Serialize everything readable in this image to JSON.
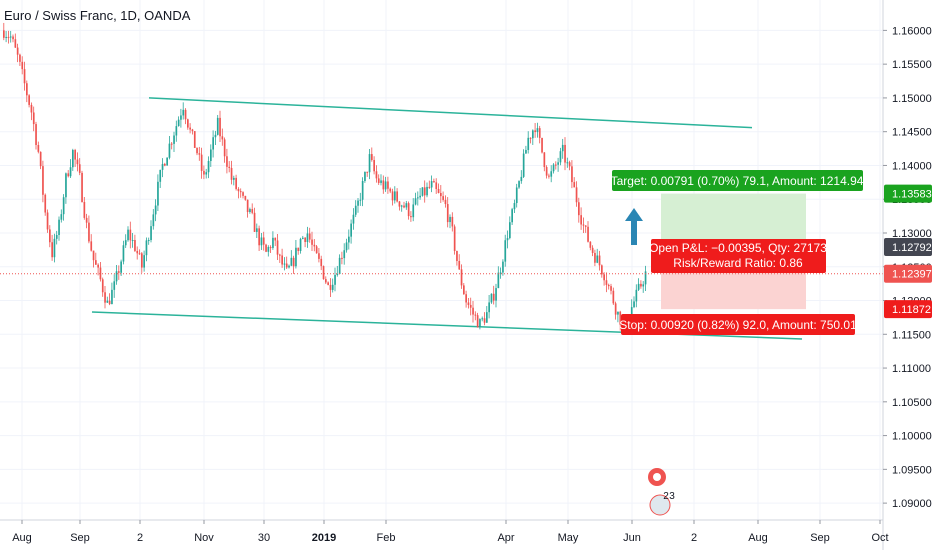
{
  "symbol_title": "Euro / Swiss Franc, 1D, OANDA",
  "colors": {
    "up": "#26a69a",
    "down": "#ef5350",
    "channel": "#2bb39a",
    "grid": "#f0f3fa",
    "price_line": "#ef5350",
    "target_zone": "#d6efd3",
    "stop_zone": "#fbd3d2",
    "target_badge": "#1aa31f",
    "stop_badge": "#ef1c1c",
    "arrow": "#2a86b4"
  },
  "chart_data": {
    "type": "candlestick",
    "y_range": [
      1.0875,
      1.1645
    ],
    "y_ticks": [
      "1.16000",
      "1.15500",
      "1.15000",
      "1.14500",
      "1.14000",
      "1.13500",
      "1.13000",
      "1.12500",
      "1.12000",
      "1.11500",
      "1.11000",
      "1.10500",
      "1.10000",
      "1.09500",
      "1.09000"
    ],
    "x_ticks": [
      "Aug",
      "Sep",
      "2",
      "Nov",
      "30",
      "2019",
      "Feb",
      "Apr",
      "May",
      "Jun",
      "2",
      "Aug",
      "Sep",
      "Oct"
    ],
    "price_flags": [
      {
        "label": "1.13583",
        "value": 1.13583,
        "color": "#1aa31f"
      },
      {
        "label": "1.12792",
        "value": 1.12792,
        "color": "#434651"
      },
      {
        "label": "1.12397",
        "value": 1.12397,
        "color": "#ef5350"
      },
      {
        "label": "1.11872",
        "value": 1.11872,
        "color": "#ef1c1c"
      }
    ],
    "current_price": 1.12397,
    "channel_upper": [
      {
        "date": "Sep 2018",
        "price": 1.15
      },
      {
        "date": "Jul 2019",
        "price": 1.1456
      }
    ],
    "channel_lower": [
      {
        "date": "Aug 2018",
        "price": 1.1183
      },
      {
        "date": "Aug 2019",
        "price": 1.1143
      }
    ],
    "position": {
      "entry": 1.12792,
      "target": 1.13583,
      "stop": 1.11872,
      "target_label": "Target: 0.00791 (0.70%) 79.1, Amount: 1214.94",
      "pnl_label": "Open P&L: −0.00395, Qty: 27173",
      "ratio_label": "Risk/Reward Ratio: 0.86",
      "stop_label": "Stop: 0.00920 (0.82%) 92.0, Amount: 750.01"
    },
    "close_path": [
      [
        0,
        1.16
      ],
      [
        3,
        1.159
      ],
      [
        6,
        1.156
      ],
      [
        9,
        1.152
      ],
      [
        12,
        1.148
      ],
      [
        15,
        1.142
      ],
      [
        18,
        1.133
      ],
      [
        21,
        1.127
      ],
      [
        24,
        1.131
      ],
      [
        27,
        1.138
      ],
      [
        30,
        1.142
      ],
      [
        33,
        1.138
      ],
      [
        36,
        1.131
      ],
      [
        39,
        1.126
      ],
      [
        42,
        1.123
      ],
      [
        45,
        1.1195
      ],
      [
        48,
        1.122
      ],
      [
        51,
        1.126
      ],
      [
        54,
        1.13
      ],
      [
        57,
        1.128
      ],
      [
        60,
        1.125
      ],
      [
        63,
        1.13
      ],
      [
        66,
        1.135
      ],
      [
        69,
        1.14
      ],
      [
        72,
        1.143
      ],
      [
        75,
        1.146
      ],
      [
        78,
        1.149
      ],
      [
        81,
        1.145
      ],
      [
        84,
        1.142
      ],
      [
        87,
        1.138
      ],
      [
        90,
        1.142
      ],
      [
        93,
        1.146
      ],
      [
        96,
        1.142
      ],
      [
        99,
        1.138
      ],
      [
        102,
        1.136
      ],
      [
        105,
        1.134
      ],
      [
        108,
        1.132
      ],
      [
        111,
        1.129
      ],
      [
        114,
        1.127
      ],
      [
        117,
        1.129
      ],
      [
        120,
        1.126
      ],
      [
        123,
        1.124
      ],
      [
        126,
        1.126
      ],
      [
        129,
        1.129
      ],
      [
        132,
        1.13
      ],
      [
        135,
        1.127
      ],
      [
        138,
        1.125
      ],
      [
        141,
        1.122
      ],
      [
        144,
        1.124
      ],
      [
        147,
        1.127
      ],
      [
        150,
        1.13
      ],
      [
        153,
        1.133
      ],
      [
        156,
        1.137
      ],
      [
        159,
        1.141
      ],
      [
        162,
        1.138
      ],
      [
        165,
        1.137
      ],
      [
        168,
        1.136
      ],
      [
        171,
        1.135
      ],
      [
        174,
        1.134
      ],
      [
        177,
        1.133
      ],
      [
        180,
        1.135
      ],
      [
        183,
        1.136
      ],
      [
        186,
        1.137
      ],
      [
        189,
        1.1355
      ],
      [
        192,
        1.134
      ],
      [
        195,
        1.13
      ],
      [
        198,
        1.124
      ],
      [
        201,
        1.12
      ],
      [
        204,
        1.118
      ],
      [
        207,
        1.1165
      ],
      [
        210,
        1.118
      ],
      [
        213,
        1.121
      ],
      [
        216,
        1.125
      ],
      [
        219,
        1.13
      ],
      [
        222,
        1.134
      ],
      [
        225,
        1.139
      ],
      [
        228,
        1.144
      ],
      [
        231,
        1.146
      ],
      [
        234,
        1.142
      ],
      [
        237,
        1.138
      ],
      [
        240,
        1.14
      ],
      [
        243,
        1.142
      ],
      [
        246,
        1.139
      ],
      [
        249,
        1.135
      ],
      [
        252,
        1.131
      ],
      [
        255,
        1.128
      ],
      [
        258,
        1.126
      ],
      [
        261,
        1.124
      ],
      [
        264,
        1.121
      ],
      [
        267,
        1.118
      ],
      [
        270,
        1.116
      ],
      [
        273,
        1.119
      ],
      [
        276,
        1.1215
      ],
      [
        279,
        1.124
      ]
    ]
  }
}
